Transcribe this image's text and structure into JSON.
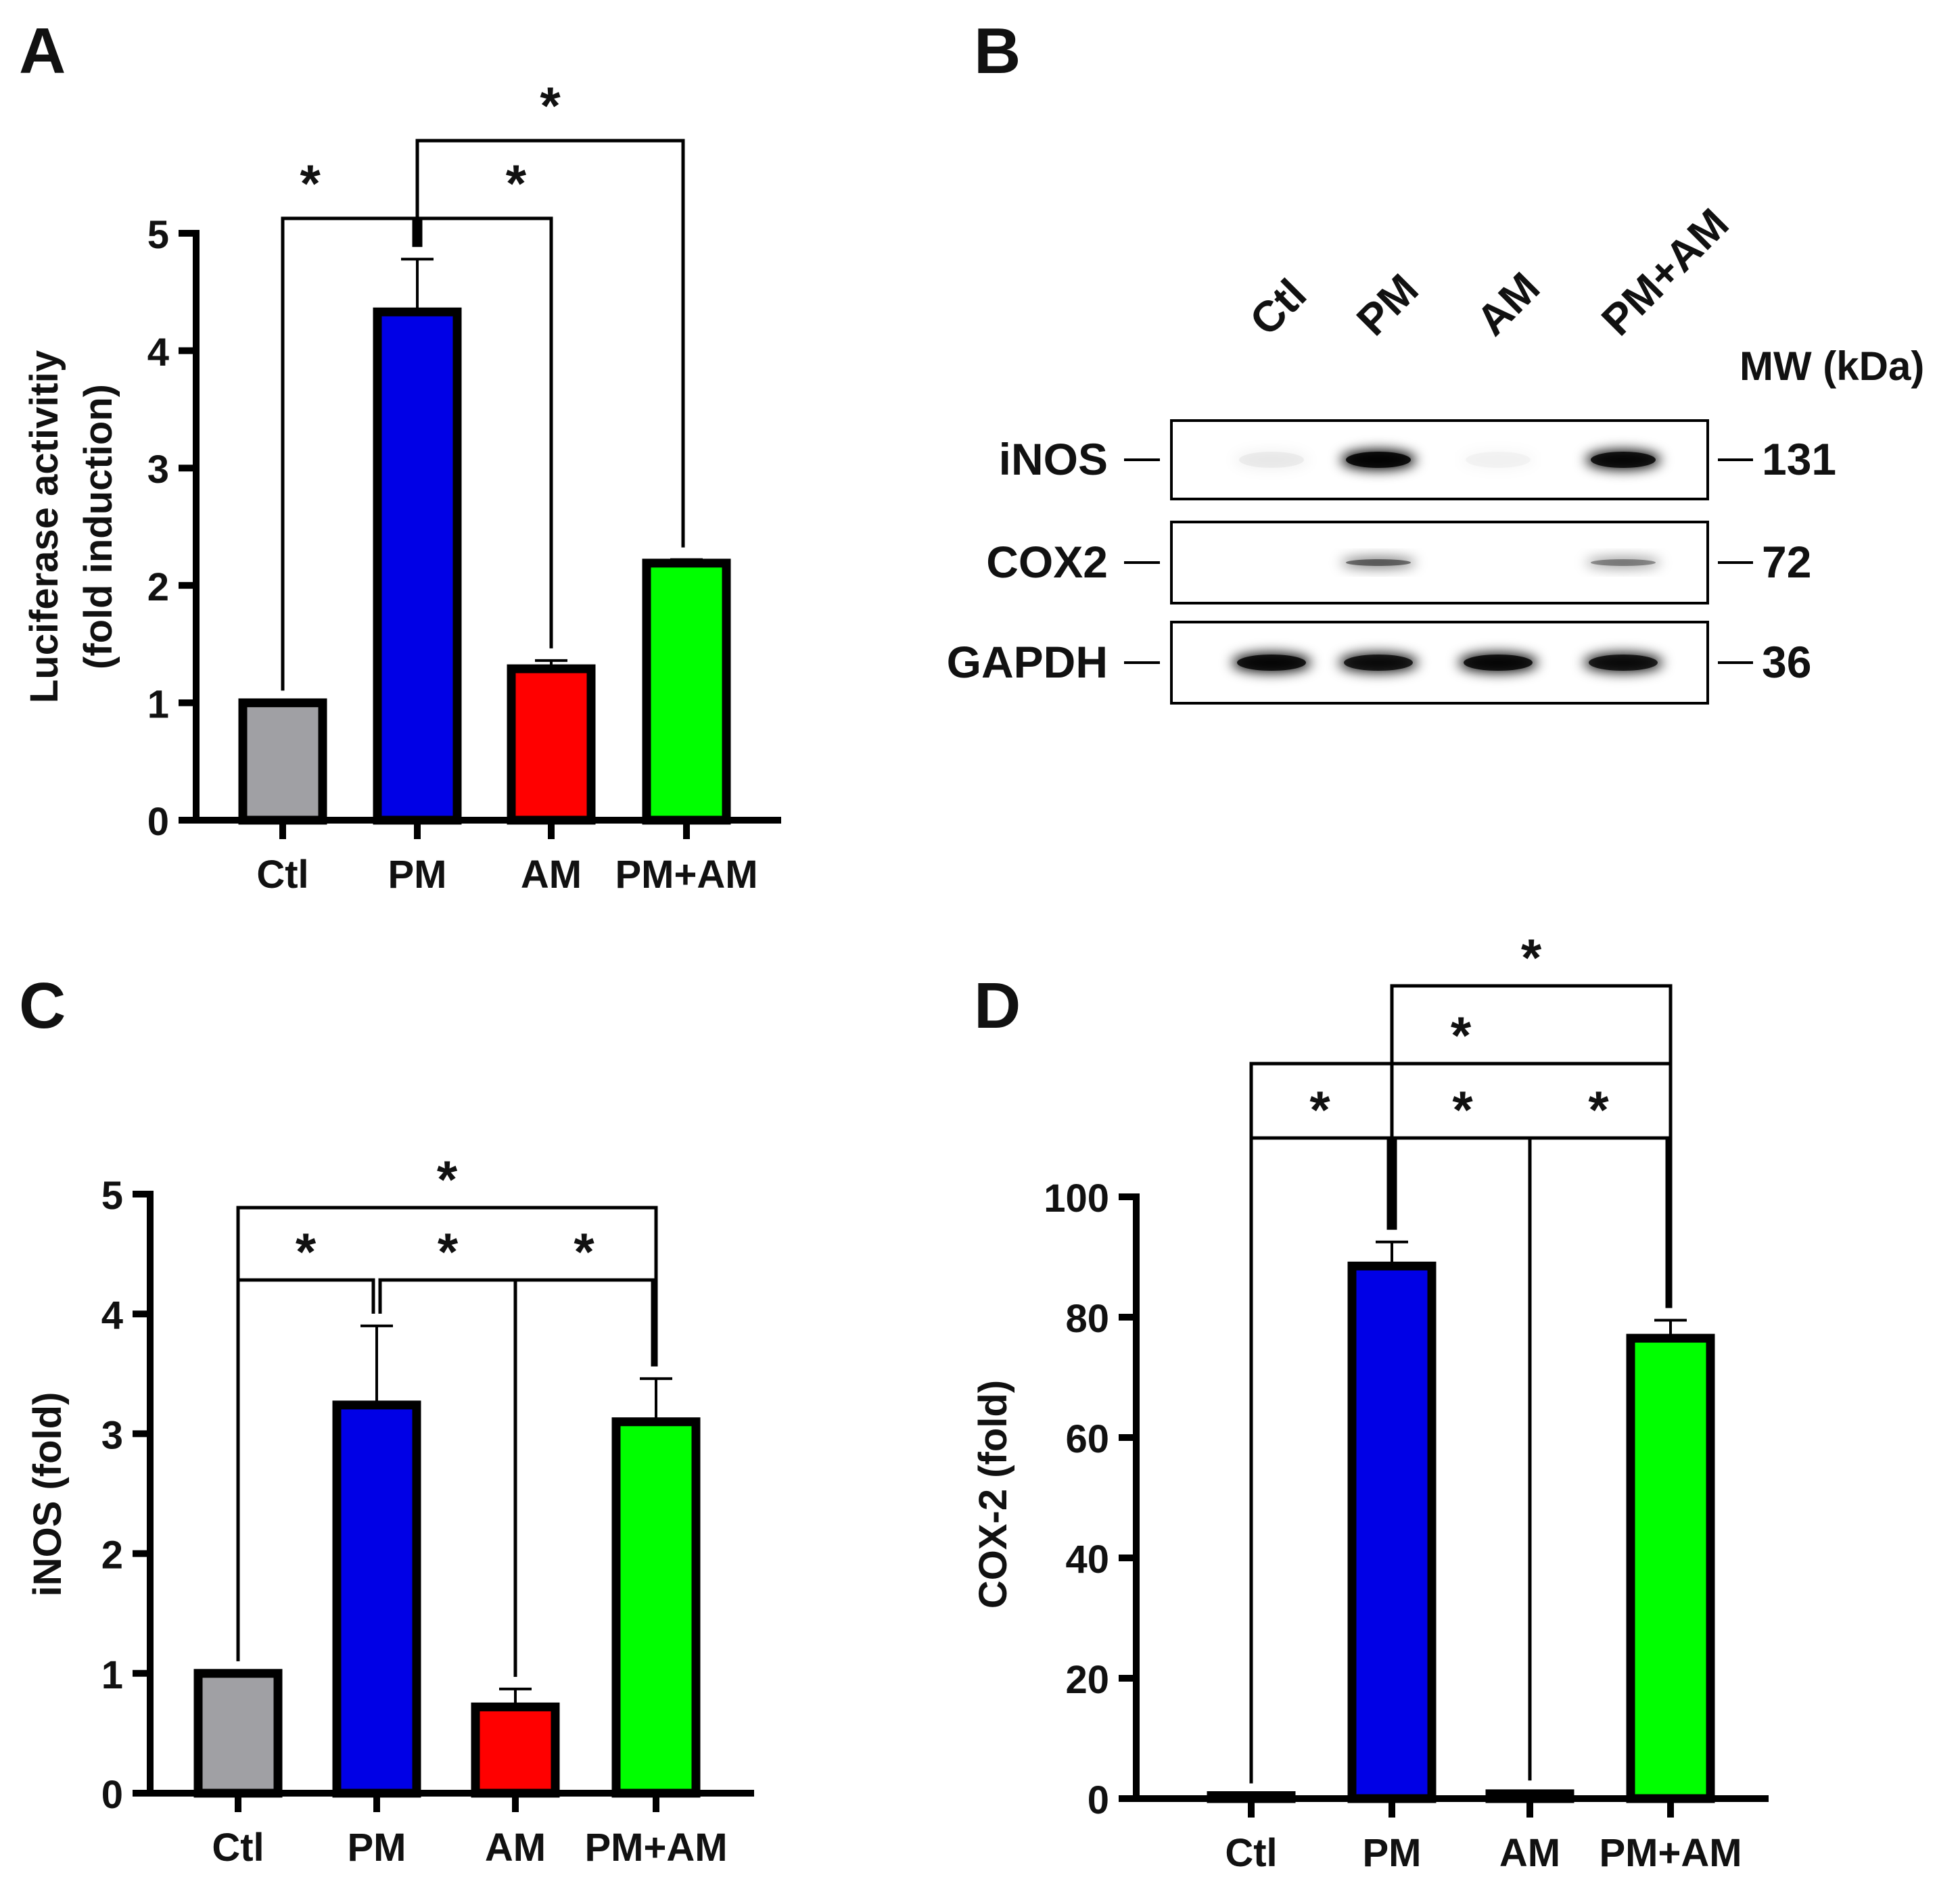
{
  "panel_letters": [
    "A",
    "B",
    "C",
    "D"
  ],
  "star": "*",
  "colors": {
    "Ctl": "#a0a0a4",
    "PM": "#0000e6",
    "AM": "#ff0000",
    "PM+AM": "#00ff00"
  },
  "chart_data": [
    {
      "panel": "A",
      "type": "bar",
      "categories": [
        "Ctl",
        "PM",
        "AM",
        "PM+AM"
      ],
      "values": [
        1.0,
        4.33,
        1.29,
        2.19
      ],
      "errors": [
        0,
        0.45,
        0.07,
        0.03
      ],
      "ylabel_lines": [
        "Luciferase activitiy",
        "(fold induction)"
      ],
      "ylim": [
        0,
        5
      ],
      "yticks": [
        0,
        1,
        2,
        3,
        4,
        5
      ],
      "significance": [
        {
          "a": 0,
          "b": 1,
          "label": "*"
        },
        {
          "a": 1,
          "b": 2,
          "label": "*"
        },
        {
          "a": 1,
          "b": 3,
          "label": "*"
        }
      ]
    },
    {
      "panel": "C",
      "type": "bar",
      "categories": [
        "Ctl",
        "PM",
        "AM",
        "PM+AM"
      ],
      "values": [
        1.0,
        3.24,
        0.72,
        3.1
      ],
      "errors": [
        0,
        0.66,
        0.15,
        0.36
      ],
      "ylabel_lines": [
        "iNOS (fold)"
      ],
      "ylim": [
        0,
        5
      ],
      "yticks": [
        0,
        1,
        2,
        3,
        4,
        5
      ],
      "significance": [
        {
          "a": 0,
          "b": 1,
          "label": "*"
        },
        {
          "a": 1,
          "b": 2,
          "label": "*"
        },
        {
          "a": 2,
          "b": 3,
          "label": "*"
        },
        {
          "a": 0,
          "b": 3,
          "label": "*"
        }
      ]
    },
    {
      "panel": "D",
      "type": "bar",
      "categories": [
        "Ctl",
        "PM",
        "AM",
        "PM+AM"
      ],
      "values": [
        0.5,
        88.5,
        0.8,
        76.5
      ],
      "errors": [
        0,
        4.0,
        0.2,
        3.0
      ],
      "ylabel_lines": [
        "COX-2 (fold)"
      ],
      "ylim": [
        0,
        100
      ],
      "yticks": [
        0,
        20,
        40,
        60,
        80,
        100
      ],
      "significance": [
        {
          "a": 0,
          "b": 1,
          "label": "*"
        },
        {
          "a": 1,
          "b": 2,
          "label": "*"
        },
        {
          "a": 2,
          "b": 3,
          "label": "*"
        },
        {
          "a": 0,
          "b": 3,
          "label": "*"
        },
        {
          "a": 1,
          "b": 3,
          "label": "*"
        }
      ]
    }
  ],
  "western_blot": {
    "lanes": [
      "Ctl",
      "PM",
      "AM",
      "PM+AM"
    ],
    "mw_header": "MW (kDa)",
    "rows": [
      {
        "protein": "iNOS",
        "mw": "131",
        "intensity": [
          0.05,
          1.0,
          0.03,
          0.95
        ]
      },
      {
        "protein": "COX2",
        "mw": "72",
        "intensity": [
          0.0,
          0.55,
          0.0,
          0.42
        ]
      },
      {
        "protein": "GAPDH",
        "mw": "36",
        "intensity": [
          0.95,
          0.9,
          0.95,
          0.9
        ]
      }
    ]
  }
}
